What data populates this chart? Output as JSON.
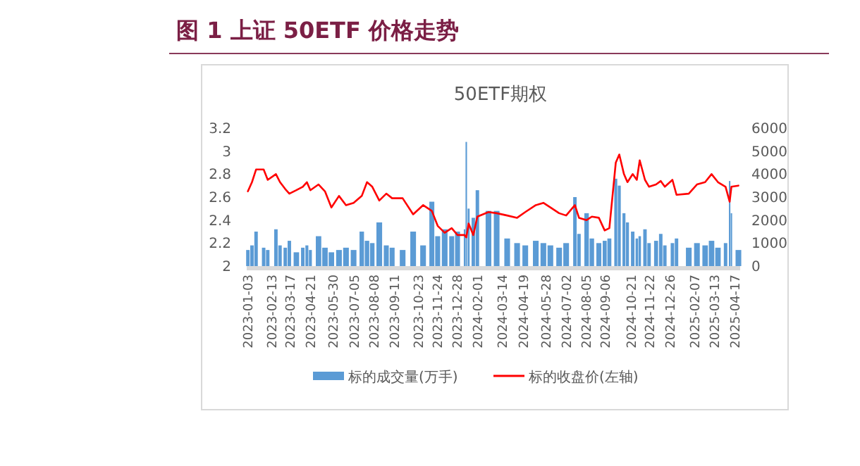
{
  "chart_data": {
    "type": "line",
    "title": "图 1 上证 50ETF 价格走势",
    "subtitle": "50ETF期权",
    "x": [
      "2023-01-03",
      "2023-01-10",
      "2023-01-17",
      "2023-01-30",
      "2023-02-06",
      "2023-02-20",
      "2023-02-27",
      "2023-03-08",
      "2023-03-15",
      "2023-03-27",
      "2023-04-07",
      "2023-04-14",
      "2023-04-20",
      "2023-05-04",
      "2023-05-15",
      "2023-05-26",
      "2023-06-08",
      "2023-06-20",
      "2023-07-03",
      "2023-07-17",
      "2023-07-26",
      "2023-08-04",
      "2023-08-16",
      "2023-08-28",
      "2023-09-07",
      "2023-09-25",
      "2023-10-13",
      "2023-10-30",
      "2023-11-14",
      "2023-11-24",
      "2023-12-06",
      "2023-12-18",
      "2023-12-28",
      "2024-01-09",
      "2024-01-12",
      "2024-01-16",
      "2024-01-24",
      "2024-01-31",
      "2024-02-19",
      "2024-03-04",
      "2024-03-22",
      "2024-04-08",
      "2024-04-22",
      "2024-05-10",
      "2024-05-23",
      "2024-06-04",
      "2024-06-19",
      "2024-07-01",
      "2024-07-16",
      "2024-07-23",
      "2024-08-05",
      "2024-08-14",
      "2024-08-26",
      "2024-09-05",
      "2024-09-13",
      "2024-09-24",
      "2024-09-30",
      "2024-10-08",
      "2024-10-14",
      "2024-10-23",
      "2024-10-30",
      "2024-11-04",
      "2024-11-13",
      "2024-11-20",
      "2024-12-02",
      "2024-12-10",
      "2024-12-17",
      "2024-12-30",
      "2025-01-06",
      "2025-01-27",
      "2025-02-10",
      "2025-02-24",
      "2025-03-07",
      "2025-03-18",
      "2025-03-31",
      "2025-04-07",
      "2025-04-10",
      "2025-04-22"
    ],
    "series": [
      {
        "name": "标的成交量(万手)",
        "type": "bar",
        "axis": "y2",
        "color": "#5b9bd5",
        "values": [
          700,
          900,
          1500,
          800,
          700,
          1600,
          900,
          800,
          1100,
          600,
          800,
          900,
          700,
          1300,
          800,
          600,
          700,
          800,
          700,
          1500,
          1100,
          1000,
          1900,
          900,
          800,
          700,
          1500,
          900,
          2800,
          1300,
          1600,
          1300,
          1500,
          1600,
          5400,
          2500,
          2100,
          3300,
          2400,
          2400,
          1200,
          1000,
          900,
          1100,
          1000,
          900,
          800,
          1000,
          3000,
          1400,
          2300,
          1200,
          1000,
          1100,
          1200,
          3800,
          3500,
          2300,
          1900,
          1500,
          1200,
          1300,
          1600,
          1000,
          1100,
          1400,
          900,
          1000,
          1200,
          800,
          1000,
          900,
          1100,
          800,
          1000,
          3700,
          2300,
          700
        ]
      },
      {
        "name": "标的收盘价(左轴)",
        "color": "#ff0000",
        "values": [
          2.65,
          2.73,
          2.84,
          2.84,
          2.75,
          2.8,
          2.73,
          2.67,
          2.63,
          2.66,
          2.69,
          2.73,
          2.66,
          2.71,
          2.65,
          2.51,
          2.61,
          2.53,
          2.55,
          2.61,
          2.73,
          2.69,
          2.57,
          2.63,
          2.59,
          2.59,
          2.45,
          2.53,
          2.48,
          2.35,
          2.29,
          2.33,
          2.27,
          2.27,
          2.25,
          2.37,
          2.27,
          2.43,
          2.47,
          2.46,
          2.44,
          2.42,
          2.47,
          2.53,
          2.55,
          2.51,
          2.46,
          2.44,
          2.53,
          2.42,
          2.4,
          2.43,
          2.42,
          2.31,
          2.33,
          2.9,
          2.97,
          2.8,
          2.73,
          2.8,
          2.75,
          2.92,
          2.75,
          2.69,
          2.71,
          2.74,
          2.69,
          2.75,
          2.62,
          2.63,
          2.71,
          2.73,
          2.8,
          2.73,
          2.69,
          2.56,
          2.69,
          2.7
        ]
      }
    ],
    "xlim": [
      "2023-01-01",
      "2025-04-25"
    ],
    "xticks": [
      "2023-01-03",
      "2023-02-13",
      "2023-03-17",
      "2023-04-21",
      "2023-05-30",
      "2023-07-05",
      "2023-08-08",
      "2023-09-11",
      "2023-10-23",
      "2023-11-24",
      "2023-12-28",
      "2024-02-01",
      "2024-03-14",
      "2024-04-19",
      "2024-05-28",
      "2024-07-02",
      "2024-08-05",
      "2024-09-06",
      "2024-10-21",
      "2024-11-22",
      "2024-12-26",
      "2025-02-07",
      "2025-03-13",
      "2025-04-17"
    ],
    "ylim": [
      2,
      3.2
    ],
    "yticks": [
      2,
      2.2,
      2.4,
      2.6,
      2.8,
      3,
      3.2
    ],
    "y2lim": [
      0,
      6000
    ],
    "y2ticks": [
      0,
      1000,
      2000,
      3000,
      4000,
      5000,
      6000
    ],
    "legend": "bottom"
  }
}
